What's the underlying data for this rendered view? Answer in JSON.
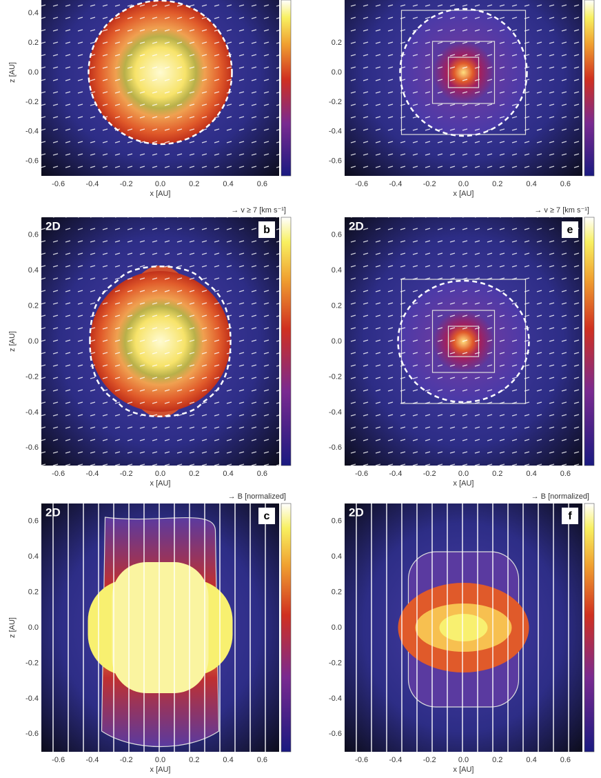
{
  "panels": [
    {
      "xlabel": "x [AU]",
      "ylabel": "z [AU]",
      "xticks": [
        "-0.6",
        "-0.4",
        "-0.2",
        "0.0",
        "0.2",
        "0.4",
        "0.6"
      ],
      "yticks": [
        "0.4",
        "0.2",
        "0.0",
        "-0.2",
        "-0.4",
        "-0.6"
      ]
    },
    {
      "xlabel": "x [AU]",
      "xticks": [
        "-0.6",
        "-0.4",
        "-0.2",
        "0.0",
        "0.2",
        "0.4",
        "0.6"
      ],
      "yticks": [
        "0.2",
        "0.0",
        "-0.2",
        "-0.4",
        "-0.6"
      ]
    },
    {
      "label": "2D",
      "tag": "b",
      "header": "→ v ≥ 7 [km s⁻¹]",
      "xlabel": "x [AU]",
      "ylabel": "z [AU]",
      "xticks": [
        "-0.6",
        "-0.4",
        "-0.2",
        "0.0",
        "0.2",
        "0.4",
        "0.6"
      ],
      "yticks": [
        "0.6",
        "0.4",
        "0.2",
        "0.0",
        "-0.2",
        "-0.4",
        "-0.6"
      ]
    },
    {
      "label": "2D",
      "tag": "e",
      "header": "→ v ≥ 7 [km s⁻¹]",
      "xlabel": "x [AU]",
      "xticks": [
        "-0.6",
        "-0.4",
        "-0.2",
        "0.0",
        "0.2",
        "0.4",
        "0.6"
      ],
      "yticks": [
        "0.6",
        "0.4",
        "0.2",
        "0.0",
        "-0.2",
        "-0.4",
        "-0.6"
      ]
    },
    {
      "label": "2D",
      "tag": "c",
      "header": "→ B [normalized]",
      "xlabel": "x [AU]",
      "ylabel": "z [AU]",
      "xticks": [
        "-0.6",
        "-0.4",
        "-0.2",
        "0.0",
        "0.2",
        "0.4",
        "0.6"
      ],
      "yticks": [
        "0.6",
        "0.4",
        "0.2",
        "0.0",
        "-0.2",
        "-0.4",
        "-0.6"
      ]
    },
    {
      "label": "2D",
      "tag": "f",
      "header": "→ B [normalized]",
      "xlabel": "x [AU]",
      "xticks": [
        "-0.6",
        "-0.4",
        "-0.2",
        "0.0",
        "0.2",
        "0.4",
        "0.6"
      ],
      "yticks": [
        "0.6",
        "0.4",
        "0.2",
        "0.0",
        "-0.2",
        "-0.4",
        "-0.6"
      ]
    }
  ]
}
